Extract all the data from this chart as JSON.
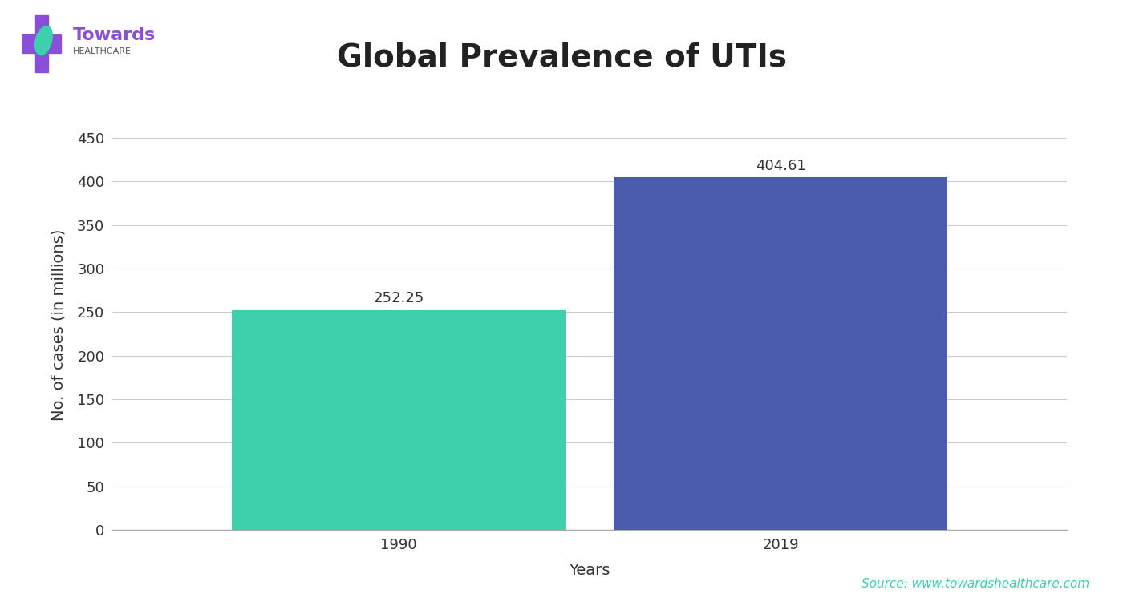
{
  "title": "Global Prevalence of UTIs",
  "categories": [
    "1990",
    "2019"
  ],
  "values": [
    252.25,
    404.61
  ],
  "bar_colors": [
    "#3ECFAD",
    "#4B5BAD"
  ],
  "ylabel": "No. of cases (in millions)",
  "xlabel": "Years",
  "ylim": [
    0,
    470
  ],
  "yticks": [
    0,
    50,
    100,
    150,
    200,
    250,
    300,
    350,
    400,
    450
  ],
  "bar_width": 0.35,
  "value_labels": [
    "252.25",
    "404.61"
  ],
  "source_text": "Source: www.towardshealthcare.com",
  "source_color": "#3ECFAD",
  "bg_color": "#FFFFFF",
  "title_fontsize": 28,
  "label_fontsize": 14,
  "tick_fontsize": 13,
  "value_fontsize": 13,
  "header_line1_color": "#5B3BCC",
  "header_line2_color": "#3ECFAD",
  "logo_text_towards": "Towards",
  "logo_text_healthcare": "HEALTHCARE",
  "logo_towards_color": "#8A4FD8",
  "logo_healthcare_color": "#555555",
  "logo_cross_color": "#8A4FD8",
  "logo_leaf_color": "#3ECFAD"
}
